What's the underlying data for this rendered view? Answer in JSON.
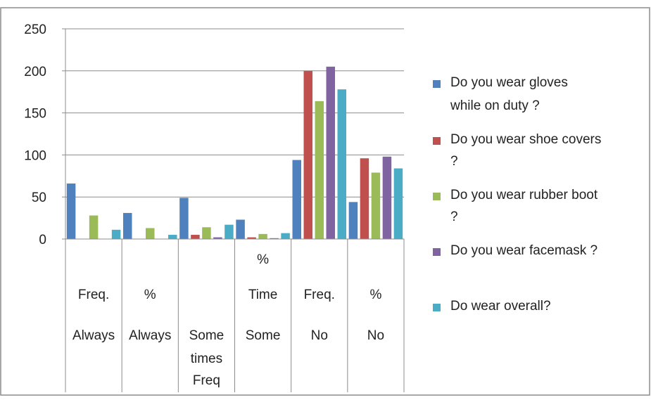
{
  "chart_data": {
    "type": "bar",
    "title": "",
    "xlabel": "",
    "ylabel": "",
    "ylim": [
      0,
      250
    ],
    "yticks": [
      0,
      50,
      100,
      150,
      200,
      250
    ],
    "grid": true,
    "legend_position": "right",
    "categories": [
      {
        "lines": [
          "Freq.",
          "Always"
        ]
      },
      {
        "lines": [
          "%",
          "Always"
        ]
      },
      {
        "lines": [
          "Some",
          "times",
          "Freq"
        ]
      },
      {
        "lines": [
          "%",
          "Time",
          "Some"
        ]
      },
      {
        "lines": [
          "Freq.",
          "No"
        ]
      },
      {
        "lines": [
          "%",
          "No"
        ]
      }
    ],
    "series": [
      {
        "legend_lines": [
          "Do you wear gloves",
          "while on duty ?"
        ],
        "color": "#4F81BD",
        "values": [
          66,
          31,
          49,
          23,
          94,
          44
        ]
      },
      {
        "legend_lines": [
          "Do you wear shoe covers",
          "?"
        ],
        "color": "#C0504D",
        "values": [
          0,
          0,
          5,
          2,
          200,
          96
        ]
      },
      {
        "legend_lines": [
          "Do you wear rubber boot",
          "?"
        ],
        "color": "#9BBB59",
        "values": [
          28,
          13,
          14,
          6,
          164,
          79
        ]
      },
      {
        "legend_lines": [
          "Do you wear facemask ?"
        ],
        "color": "#8064A2",
        "values": [
          0,
          0,
          2,
          1,
          205,
          98
        ]
      },
      {
        "legend_lines": [
          "Do wear overall?"
        ],
        "color": "#4BACC6",
        "values": [
          11,
          5,
          17,
          7,
          178,
          84
        ]
      }
    ]
  }
}
